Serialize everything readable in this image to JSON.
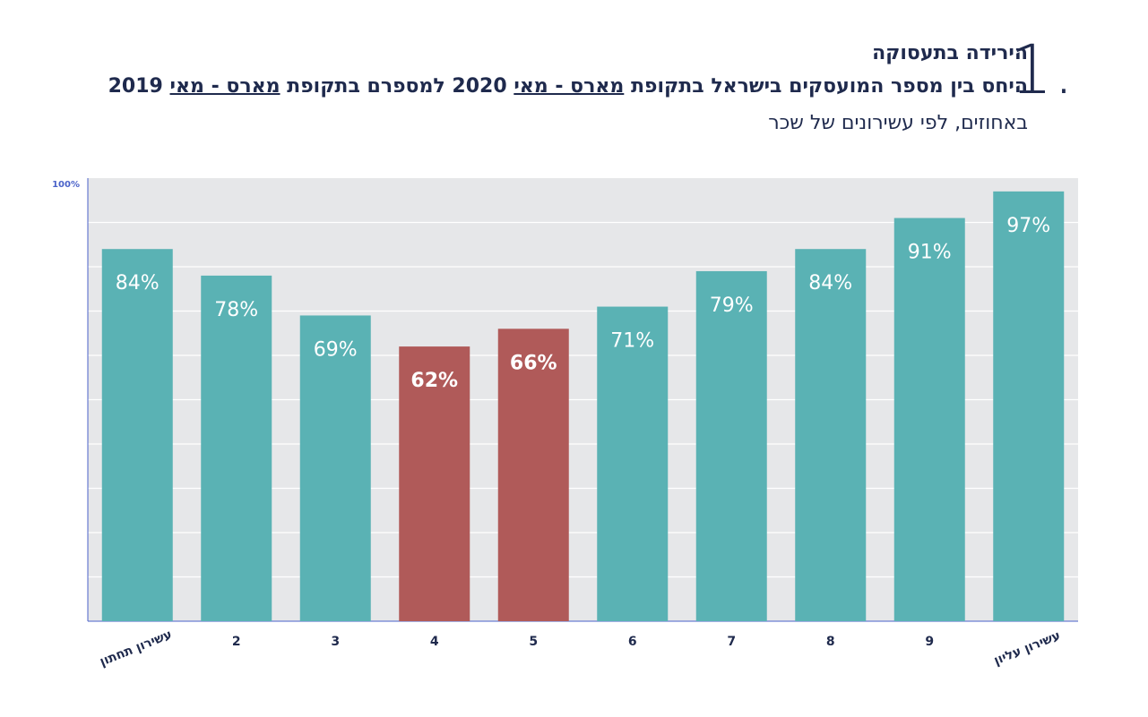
{
  "header": {
    "number": "1.",
    "title": "הירידה בתעסוקה",
    "subtitle_parts": [
      {
        "text": "היחס בין מספר המועסקים בישראל בתקופת ",
        "underline": false
      },
      {
        "text": "מארס - מאי",
        "underline": true
      },
      {
        "text": " 2020 למספרם בתקופת ",
        "underline": false
      },
      {
        "text": "מארס - מאי",
        "underline": true
      },
      {
        "text": " 2019",
        "underline": false
      }
    ],
    "caption": "באחוזים, לפי עשירונים של שכר"
  },
  "colors": {
    "teal": "#5ab2b4",
    "red": "#b05a59",
    "plot_bg": "#e6e7e9",
    "gridline": "#ffffff",
    "axis": "#4a62c9",
    "text": "#1f2a4d"
  },
  "chart_data": {
    "type": "bar",
    "title": "",
    "xlabel": "",
    "ylabel": "",
    "ylim": [
      0,
      100
    ],
    "y_tick_label": "100%",
    "grid": true,
    "categories": [
      "עשירון תחתון",
      "2",
      "3",
      "4",
      "5",
      "6",
      "7",
      "8",
      "9",
      "עשירון עליון"
    ],
    "values": [
      84,
      78,
      69,
      62,
      66,
      71,
      79,
      84,
      91,
      97
    ],
    "labels": [
      "84%",
      "78%",
      "69%",
      "62%",
      "66%",
      "71%",
      "79%",
      "84%",
      "91%",
      "97%"
    ],
    "highlighted": [
      false,
      false,
      false,
      true,
      true,
      false,
      false,
      false,
      false,
      false
    ]
  }
}
